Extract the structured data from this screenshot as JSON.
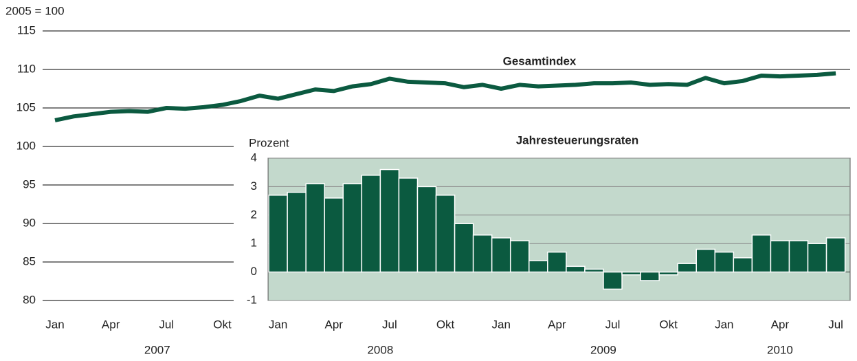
{
  "chart_data": [
    {
      "type": "line",
      "title": "Gesamtindex",
      "ylabel": "2005 = 100",
      "categories": [
        "Jan",
        null,
        null,
        "Apr",
        null,
        null,
        "Jul",
        null,
        null,
        "Okt",
        null,
        null,
        "Jan",
        null,
        null,
        "Apr",
        null,
        null,
        "Jul",
        null,
        null,
        "Okt",
        null,
        null,
        "Jan",
        null,
        null,
        "Apr",
        null,
        null,
        "Jul",
        null,
        null,
        "Okt",
        null,
        null,
        "Jan",
        null,
        null,
        "Apr",
        null,
        null,
        "Jul"
      ],
      "years": [
        "2007",
        "2008",
        "2009",
        "2010"
      ],
      "series": [
        {
          "name": "Gesamtindex",
          "color": "#0b5a40",
          "values": [
            103.4,
            103.9,
            104.2,
            104.5,
            104.6,
            104.5,
            105.0,
            104.9,
            105.1,
            105.4,
            105.9,
            106.6,
            106.2,
            106.8,
            107.4,
            107.2,
            107.8,
            108.1,
            108.8,
            108.4,
            108.3,
            108.2,
            107.7,
            108.0,
            107.5,
            108.0,
            107.8,
            107.9,
            108.0,
            108.2,
            108.2,
            108.3,
            108.0,
            108.1,
            108.0,
            108.9,
            108.2,
            108.5,
            109.2,
            109.1,
            109.2,
            109.3,
            109.5
          ]
        }
      ],
      "ylim": [
        80,
        115
      ],
      "yticks": [
        80,
        85,
        90,
        95,
        100,
        105,
        110,
        115
      ],
      "grid": true
    },
    {
      "type": "bar",
      "title": "Jahresteuerungsraten",
      "ylabel": "Prozent",
      "color": "#0b5a40",
      "background": "#c3d9cc",
      "values": [
        2.7,
        2.8,
        3.1,
        2.6,
        3.1,
        3.4,
        3.6,
        3.3,
        3.0,
        2.7,
        1.7,
        1.3,
        1.2,
        1.1,
        0.4,
        0.7,
        0.2,
        0.1,
        -0.6,
        -0.1,
        -0.3,
        -0.1,
        0.3,
        0.8,
        0.7,
        0.5,
        1.3,
        1.1,
        1.1,
        1.0,
        1.2
      ],
      "ylim": [
        -1,
        4
      ],
      "yticks": [
        -1,
        0,
        1,
        2,
        3,
        4
      ],
      "grid": true
    }
  ]
}
